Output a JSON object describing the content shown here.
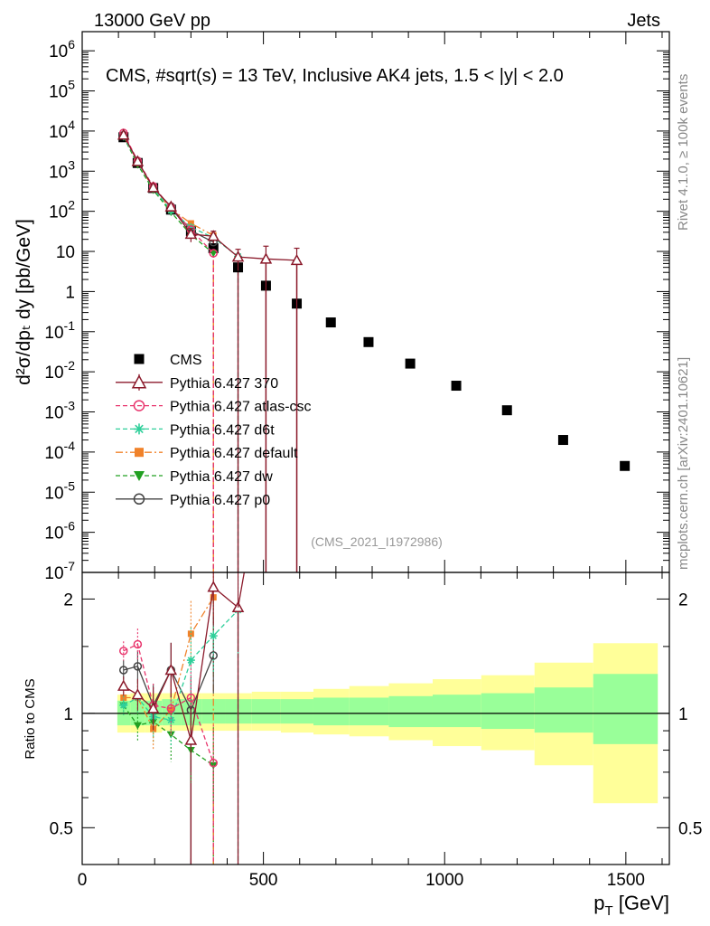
{
  "header": {
    "left": "13000 GeV pp",
    "right": "Jets"
  },
  "title": "CMS, #sqrt(s) = 13 TeV, Inclusive AK4 jets, 1.5 < |y| < 2.0",
  "side_top": "Rivet 4.1.0, ≥ 100k events",
  "side_bottom": "mcplots.cern.ch [arXiv:2401.10621]",
  "analysis_id": "(CMS_2021_I1972986)",
  "colors": {
    "cms": "#000000",
    "p370": "#8b1a2b",
    "atlas": "#e8356d",
    "d6t": "#2fcf9a",
    "default": "#f0822a",
    "dw": "#22a022",
    "p0": "#444444",
    "band_inner": "#99ff99",
    "band_outer": "#ffff99"
  },
  "chart_data": [
    {
      "type": "scatter",
      "panel": "main",
      "ylabel": "d²σ/dpₜ dy [pb/GeV]",
      "xlim": [
        0,
        1620
      ],
      "yscale": "log",
      "ylim": [
        1e-07,
        3000000.0
      ],
      "ytick_labels": [
        "10^-7",
        "10^-6",
        "10^-5",
        "10^-4",
        "10^-3",
        "10^-2",
        "10^-1",
        "1",
        "10",
        "10^2",
        "10^3",
        "10^4",
        "10^5",
        "10^6"
      ],
      "series": [
        {
          "name": "CMS",
          "key": "cms",
          "x": [
            114,
            153,
            196,
            245,
            300,
            362,
            430,
            507,
            592,
            686,
            790,
            905,
            1032,
            1172,
            1327,
            1497
          ],
          "y": [
            7000,
            1600,
            380,
            110,
            32,
            12,
            4.0,
            1.4,
            0.5,
            0.17,
            0.055,
            0.016,
            0.0045,
            0.0011,
            0.0002,
            4.5e-05
          ]
        },
        {
          "name": "Pythia 6.427 370",
          "key": "p370",
          "x": [
            114,
            153,
            196,
            245,
            300,
            362,
            430,
            507,
            592
          ],
          "y": [
            8000,
            1750,
            390,
            130,
            27,
            24,
            7.3,
            6.5,
            6.0
          ],
          "yerr": [
            900,
            200,
            50,
            25,
            10,
            8,
            4,
            7,
            6
          ]
        },
        {
          "name": "Pythia 6.427 atlas-csc",
          "key": "atlas",
          "x": [
            114,
            153,
            196,
            245,
            300,
            362
          ],
          "y": [
            9000,
            1800,
            420,
            125,
            35,
            9
          ]
        },
        {
          "name": "Pythia 6.427 d6t",
          "key": "d6t",
          "x": [
            114,
            153,
            196,
            245,
            300,
            362,
            430
          ],
          "y": [
            7400,
            1720,
            375,
            105,
            40,
            22,
            7.5
          ]
        },
        {
          "name": "Pythia 6.427 default",
          "key": "default",
          "x": [
            114,
            153,
            196,
            245,
            300,
            362
          ],
          "y": [
            7600,
            1750,
            360,
            115,
            50,
            25
          ]
        },
        {
          "name": "Pythia 6.427 dw",
          "key": "dw",
          "x": [
            114,
            153,
            196,
            245,
            300,
            362
          ],
          "y": [
            7300,
            1450,
            340,
            95,
            26,
            9
          ]
        },
        {
          "name": "Pythia 6.427 p0",
          "key": "p0",
          "x": [
            114,
            153,
            196,
            245,
            300,
            362
          ],
          "y": [
            7900,
            1800,
            380,
            130,
            33,
            17
          ]
        }
      ]
    },
    {
      "type": "line",
      "panel": "ratio",
      "xlabel": "p_T [GeV]",
      "ylabel": "Ratio to CMS",
      "xlim": [
        0,
        1620
      ],
      "yscale": "log",
      "ylim": [
        0.4,
        2.35
      ],
      "xticks": [
        0,
        500,
        1000,
        1500
      ],
      "xtick_labels": [
        "0",
        "500",
        "1000",
        "1500"
      ],
      "yticks": [
        0.5,
        1,
        2
      ],
      "ytick_labels": [
        "0.5",
        "1",
        "2"
      ],
      "band_edges": [
        97,
        133,
        174,
        220,
        272,
        330,
        395,
        468,
        548,
        638,
        737,
        846,
        967,
        1101,
        1248,
        1410,
        1588
      ],
      "band_inner": [
        [
          0.93,
          1.08
        ],
        [
          0.93,
          1.08
        ],
        [
          0.93,
          1.08
        ],
        [
          0.93,
          1.09
        ],
        [
          0.93,
          1.09
        ],
        [
          0.94,
          1.09
        ],
        [
          0.94,
          1.09
        ],
        [
          0.94,
          1.09
        ],
        [
          0.94,
          1.09
        ],
        [
          0.93,
          1.1
        ],
        [
          0.93,
          1.1
        ],
        [
          0.92,
          1.11
        ],
        [
          0.92,
          1.12
        ],
        [
          0.91,
          1.13
        ],
        [
          0.89,
          1.17
        ],
        [
          0.83,
          1.27
        ]
      ],
      "band_outer": [
        [
          0.89,
          1.12
        ],
        [
          0.89,
          1.13
        ],
        [
          0.89,
          1.13
        ],
        [
          0.9,
          1.13
        ],
        [
          0.9,
          1.13
        ],
        [
          0.9,
          1.13
        ],
        [
          0.9,
          1.13
        ],
        [
          0.9,
          1.14
        ],
        [
          0.89,
          1.14
        ],
        [
          0.88,
          1.16
        ],
        [
          0.87,
          1.18
        ],
        [
          0.85,
          1.2
        ],
        [
          0.82,
          1.23
        ],
        [
          0.8,
          1.26
        ],
        [
          0.73,
          1.36
        ],
        [
          0.58,
          1.53
        ]
      ],
      "series": [
        {
          "name": "Pythia 6.427 370",
          "key": "p370",
          "x": [
            114,
            153,
            196,
            245,
            300,
            362,
            430
          ],
          "y": [
            1.18,
            1.12,
            1.03,
            1.3,
            0.85,
            2.15,
            1.9
          ]
        },
        {
          "name": "Pythia 6.427 atlas-csc",
          "key": "atlas",
          "x": [
            114,
            153,
            196,
            245,
            300,
            362
          ],
          "y": [
            1.46,
            1.52,
            1.05,
            1.03,
            1.1,
            0.74
          ]
        },
        {
          "name": "Pythia 6.427 d6t",
          "key": "d6t",
          "x": [
            114,
            153,
            196,
            245,
            300,
            362,
            430
          ],
          "y": [
            1.05,
            1.1,
            0.98,
            0.96,
            1.38,
            1.6,
            1.87
          ]
        },
        {
          "name": "Pythia 6.427 default",
          "key": "default",
          "x": [
            114,
            153,
            196,
            245,
            300,
            362
          ],
          "y": [
            1.1,
            1.1,
            0.91,
            1.02,
            1.62,
            2.02
          ]
        },
        {
          "name": "Pythia 6.427 dw",
          "key": "dw",
          "x": [
            114,
            153,
            196,
            245,
            300,
            362
          ],
          "y": [
            1.05,
            0.93,
            0.95,
            0.88,
            0.8,
            0.73
          ]
        },
        {
          "name": "Pythia 6.427 p0",
          "key": "p0",
          "x": [
            114,
            153,
            196,
            245,
            300,
            362
          ],
          "y": [
            1.3,
            1.33,
            1.05,
            1.3,
            1.02,
            1.42
          ]
        }
      ]
    }
  ]
}
